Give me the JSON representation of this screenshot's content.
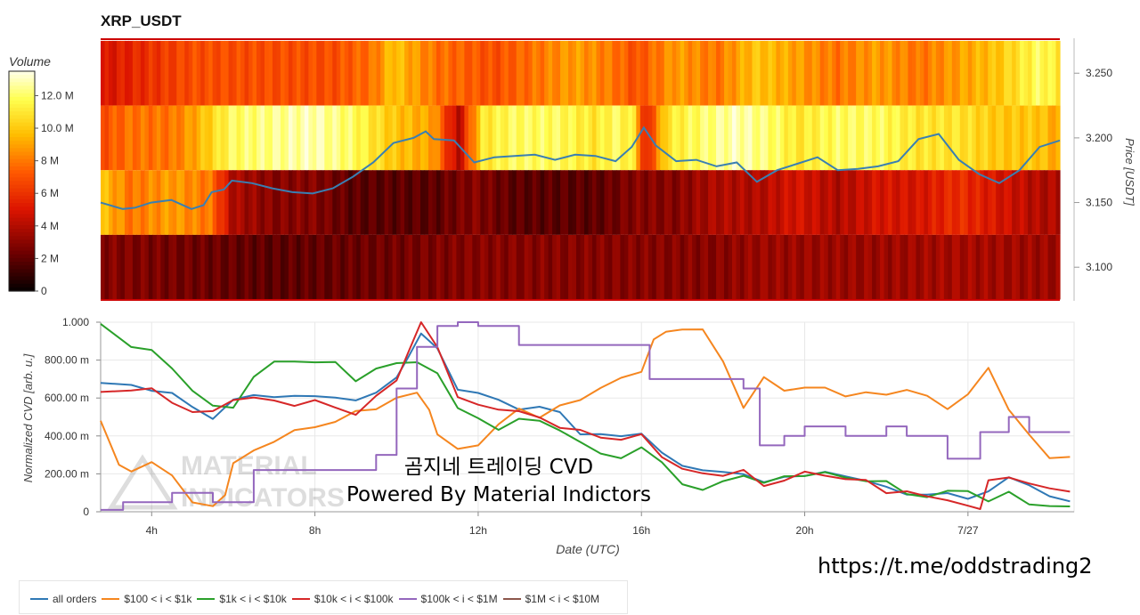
{
  "header": {
    "title": "XRP_USDT"
  },
  "colorbar": {
    "label": "Volume",
    "ticks": [
      "12.0 M",
      "10.0 M",
      "8 M",
      "6 M",
      "4 M",
      "2 M",
      "0"
    ],
    "tick_values": [
      12,
      10,
      8,
      6,
      4,
      2,
      0
    ]
  },
  "watermark": {
    "line1": "곰지네 트레이딩 CVD",
    "line2": "Powered By Material Indictors",
    "logo_line1": "MATERIAL",
    "logo_line2": "INDICATORS"
  },
  "footer": {
    "telegram": "https://t.me/oddstrading2"
  },
  "chart_data": [
    {
      "type": "heatmap",
      "title": "XRP_USDT",
      "ylabel": "Price [USDT]",
      "colorbar_label": "Volume",
      "colorbar_range": [
        0,
        13.5
      ],
      "x_range_hours": [
        2.75,
        26.5
      ],
      "ylim": [
        3.074,
        3.277
      ],
      "yticks": [
        3.1,
        3.15,
        3.2,
        3.25
      ],
      "ytick_labels": [
        "3.100",
        "3.150",
        "3.200",
        "3.250"
      ],
      "price_bands": [
        [
          3.275,
          3.225
        ],
        [
          3.225,
          3.175
        ],
        [
          3.175,
          3.125
        ],
        [
          3.125,
          3.075
        ]
      ],
      "heat_segments": [
        [
          [
            2.75,
            5
          ],
          [
            5,
            7
          ],
          [
            8.5,
            7
          ],
          [
            9.5,
            8
          ],
          [
            10,
            10
          ],
          [
            10.5,
            9
          ],
          [
            11,
            8
          ],
          [
            12.5,
            7
          ],
          [
            13.5,
            8
          ],
          [
            14.5,
            9
          ],
          [
            15.5,
            8
          ],
          [
            16,
            7
          ],
          [
            16.5,
            8
          ],
          [
            17,
            9
          ],
          [
            18,
            8
          ],
          [
            19,
            10
          ],
          [
            20,
            9
          ],
          [
            21,
            8
          ],
          [
            22,
            9
          ],
          [
            23,
            8
          ],
          [
            24,
            9
          ],
          [
            25,
            10
          ],
          [
            25.5,
            11
          ],
          [
            26,
            12
          ],
          [
            26.5,
            11
          ]
        ],
        [
          [
            2.75,
            7
          ],
          [
            3.5,
            8
          ],
          [
            4.5,
            8
          ],
          [
            5,
            9
          ],
          [
            6,
            12
          ],
          [
            8,
            13
          ],
          [
            9,
            12
          ],
          [
            10,
            10
          ],
          [
            11,
            9
          ],
          [
            11.6,
            4
          ],
          [
            12.2,
            11
          ],
          [
            13,
            12
          ],
          [
            14,
            12
          ],
          [
            15,
            11
          ],
          [
            15.5,
            12
          ],
          [
            16,
            11
          ],
          [
            16.2,
            5
          ],
          [
            16.8,
            11
          ],
          [
            17.5,
            12
          ],
          [
            18.5,
            13
          ],
          [
            19.5,
            12
          ],
          [
            20,
            11
          ],
          [
            21,
            12
          ],
          [
            22,
            12
          ],
          [
            23,
            11
          ],
          [
            24,
            11
          ],
          [
            25,
            10
          ],
          [
            26,
            10
          ],
          [
            26.5,
            9
          ]
        ],
        [
          [
            2.75,
            10
          ],
          [
            3.5,
            8
          ],
          [
            4.5,
            9
          ],
          [
            5.5,
            8
          ],
          [
            6,
            4
          ],
          [
            7,
            3
          ],
          [
            8,
            3
          ],
          [
            9,
            2
          ],
          [
            10,
            2
          ],
          [
            11,
            2
          ],
          [
            12,
            3
          ],
          [
            13,
            2
          ],
          [
            14,
            2
          ],
          [
            15,
            2
          ],
          [
            16,
            3
          ],
          [
            17,
            3
          ],
          [
            18,
            4
          ],
          [
            19,
            4
          ],
          [
            20,
            5
          ],
          [
            21,
            4
          ],
          [
            22,
            5
          ],
          [
            23,
            5
          ],
          [
            24,
            6
          ],
          [
            25,
            5
          ],
          [
            26,
            4
          ],
          [
            26.5,
            4
          ]
        ],
        [
          [
            2.75,
            3
          ],
          [
            5,
            2.5
          ],
          [
            7,
            2
          ],
          [
            10,
            2.5
          ],
          [
            12,
            3
          ],
          [
            14,
            3
          ],
          [
            16,
            3
          ],
          [
            18,
            3
          ],
          [
            19,
            3.5
          ],
          [
            22,
            3.5
          ],
          [
            24,
            3.8
          ],
          [
            26.5,
            3.5
          ]
        ]
      ],
      "price_line": {
        "name": "price",
        "color": "#3a7fb2",
        "x": [
          2.75,
          3.3,
          3.6,
          4.0,
          4.5,
          5.0,
          5.3,
          5.5,
          5.8,
          6.0,
          6.5,
          7.0,
          7.5,
          8.0,
          8.5,
          9.0,
          9.5,
          10.0,
          10.5,
          10.8,
          11.0,
          11.5,
          12.0,
          12.5,
          13.0,
          13.5,
          14.0,
          14.5,
          15.0,
          15.5,
          15.9,
          16.2,
          16.5,
          17.0,
          17.5,
          18.0,
          18.5,
          19.0,
          19.5,
          20.0,
          20.5,
          21.0,
          21.5,
          22.0,
          22.5,
          23.0,
          23.5,
          24.0,
          24.5,
          25.0,
          25.5,
          26.0,
          26.5
        ],
        "y": [
          3.15,
          3.145,
          3.146,
          3.15,
          3.152,
          3.145,
          3.148,
          3.158,
          3.16,
          3.167,
          3.165,
          3.161,
          3.158,
          3.157,
          3.161,
          3.17,
          3.181,
          3.196,
          3.2,
          3.205,
          3.199,
          3.198,
          3.181,
          3.185,
          3.186,
          3.187,
          3.183,
          3.187,
          3.186,
          3.182,
          3.193,
          3.208,
          3.194,
          3.182,
          3.183,
          3.178,
          3.181,
          3.166,
          3.175,
          3.18,
          3.185,
          3.175,
          3.176,
          3.178,
          3.182,
          3.199,
          3.203,
          3.183,
          3.172,
          3.165,
          3.175,
          3.193,
          3.198
        ]
      }
    },
    {
      "type": "line",
      "xlabel": "Date (UTC)",
      "ylabel": "Normalized CVD [arb. u.]",
      "ylim": [
        0,
        1.0
      ],
      "yticks": [
        0,
        0.2,
        0.4,
        0.6,
        0.8,
        1.0
      ],
      "ytick_labels": [
        "0",
        "200.00 m",
        "400.00 m",
        "600.00 m",
        "800.00 m",
        "1.000"
      ],
      "xlim_hours": [
        2.75,
        26.6
      ],
      "xticks": [
        4,
        8,
        12,
        16,
        20,
        24
      ],
      "xtick_labels": [
        "4h",
        "8h",
        "12h",
        "16h",
        "20h",
        "7/27"
      ],
      "grid": true,
      "legend_position": "bottom-left",
      "series": [
        {
          "name": "all orders",
          "color": "#2f78b5",
          "x": [
            2.75,
            3.5,
            4.0,
            4.5,
            5.0,
            5.5,
            6.0,
            6.5,
            7.0,
            7.5,
            8.0,
            8.5,
            9.0,
            9.5,
            10.0,
            10.3,
            10.6,
            11.0,
            11.5,
            12.0,
            12.5,
            13.0,
            13.5,
            14.0,
            14.5,
            15.0,
            15.5,
            16.0,
            16.5,
            17.0,
            17.5,
            18.0,
            18.5,
            19.0,
            19.5,
            20.0,
            20.5,
            21.0,
            21.5,
            22.0,
            22.5,
            23.0,
            23.5,
            24.0,
            24.5,
            25.0,
            25.5,
            26.0,
            26.5
          ],
          "y": [
            0.68,
            0.66,
            0.65,
            0.62,
            0.55,
            0.5,
            0.58,
            0.62,
            0.61,
            0.6,
            0.62,
            0.6,
            0.58,
            0.64,
            0.7,
            0.82,
            0.95,
            0.85,
            0.65,
            0.63,
            0.58,
            0.55,
            0.55,
            0.52,
            0.42,
            0.4,
            0.4,
            0.42,
            0.3,
            0.25,
            0.22,
            0.2,
            0.21,
            0.15,
            0.18,
            0.2,
            0.2,
            0.19,
            0.17,
            0.12,
            0.1,
            0.09,
            0.09,
            0.08,
            0.1,
            0.18,
            0.15,
            0.07,
            0.06
          ]
        },
        {
          "name": "$100 < i < $1k",
          "color": "#f5861f",
          "x": [
            2.75,
            3.2,
            3.5,
            4.0,
            4.5,
            5.0,
            5.5,
            5.8,
            6.0,
            6.5,
            7.0,
            7.5,
            8.0,
            8.5,
            9.0,
            9.5,
            10.0,
            10.5,
            10.8,
            11.0,
            11.5,
            12.0,
            12.5,
            13.0,
            13.5,
            14.0,
            14.5,
            15.0,
            15.5,
            16.0,
            16.3,
            16.6,
            17.0,
            17.5,
            18.0,
            18.5,
            19.0,
            19.5,
            20.0,
            20.5,
            21.0,
            21.5,
            22.0,
            22.5,
            23.0,
            23.5,
            24.0,
            24.5,
            25.0,
            25.5,
            26.0,
            26.5
          ],
          "y": [
            0.47,
            0.25,
            0.22,
            0.25,
            0.2,
            0.05,
            0.02,
            0.1,
            0.25,
            0.32,
            0.38,
            0.42,
            0.45,
            0.48,
            0.52,
            0.55,
            0.6,
            0.62,
            0.55,
            0.4,
            0.33,
            0.36,
            0.45,
            0.55,
            0.5,
            0.55,
            0.6,
            0.65,
            0.7,
            0.75,
            0.9,
            0.95,
            0.97,
            0.95,
            0.8,
            0.55,
            0.7,
            0.65,
            0.65,
            0.65,
            0.62,
            0.62,
            0.62,
            0.65,
            0.6,
            0.55,
            0.62,
            0.75,
            0.55,
            0.4,
            0.28,
            0.3
          ]
        },
        {
          "name": "$1k < i < $10k",
          "color": "#2aa02a",
          "x": [
            2.75,
            3.5,
            4.0,
            4.5,
            5.0,
            5.5,
            6.0,
            6.5,
            7.0,
            7.5,
            8.0,
            8.5,
            9.0,
            9.5,
            10.0,
            10.5,
            11.0,
            11.5,
            12.0,
            12.5,
            13.0,
            13.5,
            14.0,
            14.5,
            15.0,
            15.5,
            16.0,
            16.5,
            17.0,
            17.5,
            18.0,
            18.5,
            19.0,
            19.5,
            20.0,
            20.5,
            21.0,
            21.5,
            22.0,
            22.5,
            23.0,
            23.5,
            24.0,
            24.5,
            25.0,
            25.5,
            26.0,
            26.5
          ],
          "y": [
            0.98,
            0.88,
            0.85,
            0.75,
            0.65,
            0.55,
            0.55,
            0.72,
            0.78,
            0.8,
            0.79,
            0.78,
            0.7,
            0.75,
            0.78,
            0.8,
            0.72,
            0.55,
            0.5,
            0.42,
            0.5,
            0.48,
            0.42,
            0.38,
            0.3,
            0.28,
            0.35,
            0.25,
            0.15,
            0.12,
            0.15,
            0.2,
            0.15,
            0.18,
            0.2,
            0.2,
            0.18,
            0.17,
            0.15,
            0.1,
            0.08,
            0.1,
            0.12,
            0.05,
            0.1,
            0.05,
            0.02,
            0.03
          ]
        },
        {
          "name": "$10k < i < $100k",
          "color": "#d62728",
          "x": [
            2.75,
            3.5,
            4.0,
            4.5,
            5.0,
            5.5,
            6.0,
            6.5,
            7.0,
            7.5,
            8.0,
            8.5,
            9.0,
            9.5,
            10.0,
            10.3,
            10.6,
            11.0,
            11.5,
            12.0,
            12.5,
            13.0,
            13.5,
            14.0,
            14.5,
            15.0,
            15.5,
            16.0,
            16.5,
            17.0,
            17.5,
            18.0,
            18.5,
            19.0,
            19.5,
            20.0,
            20.5,
            21.0,
            21.5,
            22.0,
            22.5,
            23.0,
            23.5,
            24.0,
            24.3,
            24.5,
            25.0,
            25.5,
            26.0,
            26.5
          ],
          "y": [
            0.63,
            0.65,
            0.64,
            0.58,
            0.53,
            0.52,
            0.6,
            0.6,
            0.58,
            0.57,
            0.58,
            0.55,
            0.52,
            0.6,
            0.7,
            0.85,
            1.0,
            0.88,
            0.6,
            0.56,
            0.55,
            0.52,
            0.5,
            0.45,
            0.42,
            0.4,
            0.38,
            0.4,
            0.3,
            0.22,
            0.2,
            0.2,
            0.21,
            0.14,
            0.17,
            0.2,
            0.2,
            0.17,
            0.16,
            0.11,
            0.1,
            0.08,
            0.07,
            0.02,
            0.02,
            0.17,
            0.17,
            0.16,
            0.12,
            0.1
          ]
        },
        {
          "name": "$100k < i < $1M",
          "color": "#9467bd",
          "x": [
            2.75,
            3.3,
            3.3,
            4.5,
            4.5,
            5.5,
            5.5,
            6.5,
            6.5,
            9.5,
            9.5,
            10.0,
            10.0,
            10.5,
            10.5,
            11.0,
            11.0,
            11.5,
            11.5,
            12.0,
            12.0,
            13.0,
            13.0,
            16.2,
            16.2,
            18.5,
            18.5,
            18.9,
            18.9,
            19.5,
            19.5,
            20.0,
            20.0,
            21.0,
            21.0,
            22.0,
            22.0,
            22.5,
            22.5,
            23.5,
            23.5,
            24.3,
            24.3,
            25.0,
            25.0,
            25.5,
            25.5,
            26.5
          ],
          "y": [
            0.01,
            0.01,
            0.05,
            0.05,
            0.1,
            0.1,
            0.05,
            0.05,
            0.22,
            0.22,
            0.3,
            0.3,
            0.65,
            0.65,
            0.87,
            0.87,
            0.98,
            0.98,
            1.0,
            1.0,
            0.98,
            0.98,
            0.88,
            0.88,
            0.7,
            0.7,
            0.65,
            0.65,
            0.35,
            0.35,
            0.4,
            0.4,
            0.45,
            0.45,
            0.4,
            0.4,
            0.45,
            0.45,
            0.4,
            0.4,
            0.28,
            0.28,
            0.42,
            0.42,
            0.5,
            0.5,
            0.42,
            0.42
          ]
        },
        {
          "name": "$1M < i < $10M",
          "color": "#8c564b",
          "x": [],
          "y": []
        }
      ]
    }
  ]
}
